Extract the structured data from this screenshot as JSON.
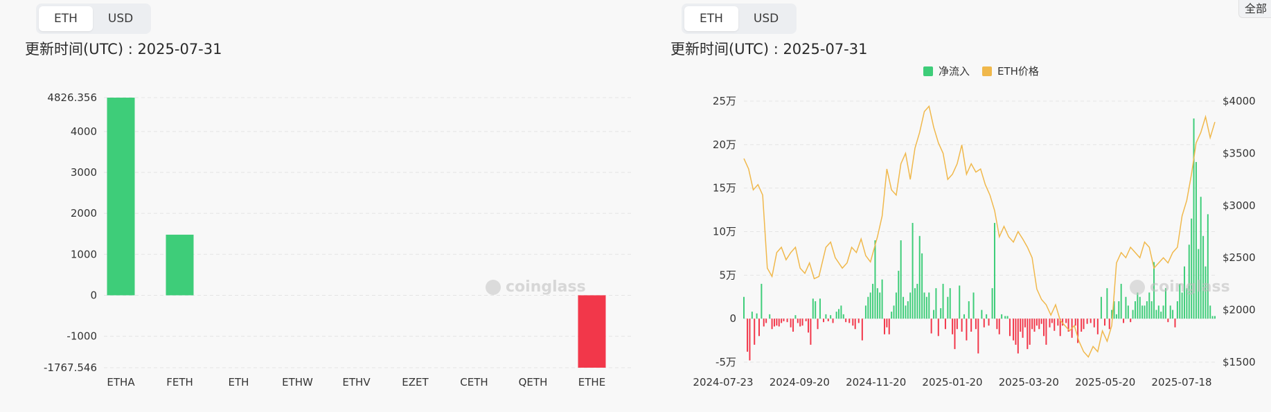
{
  "left_panel": {
    "toggle": [
      {
        "label": "ETH",
        "active": true
      },
      {
        "label": "USD",
        "active": false
      }
    ],
    "update_time": "更新时间(UTC) : 2025-07-31",
    "watermark": "coinglass"
  },
  "right_panel": {
    "toggle": [
      {
        "label": "ETH",
        "active": true
      },
      {
        "label": "USD",
        "active": false
      }
    ],
    "update_time": "更新时间(UTC) : 2025-07-31",
    "watermark": "coinglass",
    "corner_button": "全部"
  },
  "colors": {
    "positive": "#3ecd79",
    "negative": "#f2374a",
    "price": "#f0b84b",
    "grid": "#e4e4e4"
  },
  "chart_data": [
    {
      "type": "bar",
      "categories": [
        "ETHA",
        "FETH",
        "ETH",
        "ETHW",
        "ETHV",
        "EZET",
        "CETH",
        "QETH",
        "ETHE"
      ],
      "values": [
        4826.356,
        1480,
        0,
        0,
        0,
        0,
        0,
        0,
        -1767.546
      ],
      "y_ticks": [
        "4826.356",
        "4000",
        "3000",
        "2000",
        "1000",
        "0",
        "-1000",
        "-1767.546"
      ],
      "y_tick_values": [
        4826.356,
        4000,
        3000,
        2000,
        1000,
        0,
        -1000,
        -1767.546
      ],
      "ylim": [
        -1767.546,
        4826.356
      ],
      "grid": true
    },
    {
      "type": "bar+line",
      "legend": [
        "净流入",
        "ETH价格"
      ],
      "x_ticks": [
        "2024-07-23",
        "2024-09-20",
        "2024-11-20",
        "2025-01-20",
        "2025-03-20",
        "2025-05-20",
        "2025-07-18"
      ],
      "y_left_ticks": [
        "25万",
        "20万",
        "15万",
        "10万",
        "5万",
        "0",
        "-5万"
      ],
      "y_left_values": [
        250000,
        200000,
        150000,
        100000,
        50000,
        0,
        -50000
      ],
      "y_right_ticks": [
        "$4000",
        "$3500",
        "$3000",
        "$2500",
        "$2000",
        "$1500"
      ],
      "y_right_values": [
        4000,
        3500,
        3000,
        2500,
        2000,
        1500
      ],
      "ylim_left": [
        -50000,
        250000
      ],
      "ylim_right": [
        1500,
        4000
      ],
      "grid": true,
      "price_points": [
        [
          0,
          3450
        ],
        [
          4,
          3350
        ],
        [
          8,
          3150
        ],
        [
          12,
          3200
        ],
        [
          16,
          3100
        ],
        [
          20,
          2400
        ],
        [
          24,
          2320
        ],
        [
          28,
          2550
        ],
        [
          32,
          2600
        ],
        [
          36,
          2480
        ],
        [
          40,
          2550
        ],
        [
          44,
          2600
        ],
        [
          48,
          2400
        ],
        [
          52,
          2350
        ],
        [
          56,
          2450
        ],
        [
          60,
          2300
        ],
        [
          64,
          2320
        ],
        [
          70,
          2600
        ],
        [
          74,
          2650
        ],
        [
          78,
          2500
        ],
        [
          84,
          2400
        ],
        [
          88,
          2450
        ],
        [
          92,
          2600
        ],
        [
          96,
          2550
        ],
        [
          100,
          2680
        ],
        [
          104,
          2520
        ],
        [
          108,
          2460
        ],
        [
          114,
          2700
        ],
        [
          118,
          2900
        ],
        [
          122,
          3350
        ],
        [
          126,
          3150
        ],
        [
          130,
          3100
        ],
        [
          134,
          3400
        ],
        [
          138,
          3500
        ],
        [
          142,
          3250
        ],
        [
          146,
          3550
        ],
        [
          150,
          3700
        ],
        [
          154,
          3900
        ],
        [
          158,
          3950
        ],
        [
          162,
          3750
        ],
        [
          166,
          3600
        ],
        [
          170,
          3500
        ],
        [
          174,
          3250
        ],
        [
          178,
          3300
        ],
        [
          182,
          3400
        ],
        [
          186,
          3580
        ],
        [
          190,
          3300
        ],
        [
          194,
          3400
        ],
        [
          198,
          3320
        ],
        [
          202,
          3350
        ],
        [
          206,
          3200
        ],
        [
          210,
          3100
        ],
        [
          214,
          2950
        ],
        [
          218,
          2700
        ],
        [
          222,
          2800
        ],
        [
          226,
          2700
        ],
        [
          230,
          2650
        ],
        [
          234,
          2750
        ],
        [
          238,
          2680
        ],
        [
          242,
          2600
        ],
        [
          246,
          2500
        ],
        [
          250,
          2200
        ],
        [
          254,
          2100
        ],
        [
          258,
          2050
        ],
        [
          262,
          1950
        ],
        [
          266,
          2050
        ],
        [
          270,
          1900
        ],
        [
          274,
          1850
        ],
        [
          278,
          1800
        ],
        [
          282,
          1850
        ],
        [
          286,
          1700
        ],
        [
          290,
          1600
        ],
        [
          294,
          1550
        ],
        [
          298,
          1650
        ],
        [
          302,
          1600
        ],
        [
          306,
          1800
        ],
        [
          310,
          1700
        ],
        [
          314,
          1850
        ],
        [
          318,
          2450
        ],
        [
          322,
          2550
        ],
        [
          326,
          2500
        ],
        [
          330,
          2600
        ],
        [
          334,
          2550
        ],
        [
          338,
          2500
        ],
        [
          342,
          2650
        ],
        [
          346,
          2600
        ],
        [
          350,
          2400
        ],
        [
          354,
          2450
        ],
        [
          358,
          2500
        ],
        [
          362,
          2450
        ],
        [
          366,
          2550
        ],
        [
          370,
          2600
        ],
        [
          374,
          2900
        ],
        [
          378,
          3050
        ],
        [
          382,
          3300
        ],
        [
          386,
          3600
        ],
        [
          390,
          3700
        ],
        [
          394,
          3850
        ],
        [
          398,
          3650
        ],
        [
          402,
          3800
        ]
      ],
      "flow_bars": [
        [
          0,
          25000
        ],
        [
          3,
          -38000
        ],
        [
          5,
          -48000
        ],
        [
          7,
          8000
        ],
        [
          9,
          -30000
        ],
        [
          11,
          6000
        ],
        [
          13,
          -20000
        ],
        [
          15,
          40000
        ],
        [
          17,
          -9000
        ],
        [
          19,
          -5000
        ],
        [
          22,
          5000
        ],
        [
          24,
          -12000
        ],
        [
          26,
          -9000
        ],
        [
          28,
          -8000
        ],
        [
          30,
          -9000
        ],
        [
          32,
          -5000
        ],
        [
          34,
          -3000
        ],
        [
          37,
          -4000
        ],
        [
          40,
          -10000
        ],
        [
          42,
          -15000
        ],
        [
          44,
          4000
        ],
        [
          46,
          -5000
        ],
        [
          48,
          -9000
        ],
        [
          50,
          -8000
        ],
        [
          53,
          -3000
        ],
        [
          55,
          -16000
        ],
        [
          57,
          -30000
        ],
        [
          59,
          23000
        ],
        [
          61,
          20000
        ],
        [
          63,
          -12000
        ],
        [
          65,
          23000
        ],
        [
          68,
          -4000
        ],
        [
          70,
          5000
        ],
        [
          72,
          -3000
        ],
        [
          74,
          4000
        ],
        [
          76,
          -5000
        ],
        [
          79,
          8000
        ],
        [
          81,
          11000
        ],
        [
          83,
          15000
        ],
        [
          85,
          5000
        ],
        [
          87,
          -4000
        ],
        [
          90,
          -5000
        ],
        [
          93,
          -8000
        ],
        [
          95,
          -12000
        ],
        [
          98,
          -5000
        ],
        [
          101,
          -25000
        ],
        [
          104,
          15000
        ],
        [
          106,
          25000
        ],
        [
          108,
          30000
        ],
        [
          110,
          40000
        ],
        [
          112,
          90000
        ],
        [
          114,
          35000
        ],
        [
          116,
          30000
        ],
        [
          118,
          45000
        ],
        [
          120,
          -18000
        ],
        [
          122,
          -10000
        ],
        [
          124,
          -18000
        ],
        [
          126,
          8000
        ],
        [
          128,
          15000
        ],
        [
          130,
          30000
        ],
        [
          132,
          55000
        ],
        [
          134,
          90000
        ],
        [
          136,
          25000
        ],
        [
          138,
          15000
        ],
        [
          140,
          20000
        ],
        [
          142,
          30000
        ],
        [
          144,
          110000
        ],
        [
          146,
          35000
        ],
        [
          148,
          40000
        ],
        [
          150,
          95000
        ],
        [
          152,
          75000
        ],
        [
          154,
          30000
        ],
        [
          156,
          25000
        ],
        [
          158,
          30000
        ],
        [
          160,
          -17000
        ],
        [
          162,
          10000
        ],
        [
          164,
          35000
        ],
        [
          166,
          -20000
        ],
        [
          168,
          12000
        ],
        [
          170,
          40000
        ],
        [
          172,
          -12000
        ],
        [
          174,
          25000
        ],
        [
          176,
          35000
        ],
        [
          178,
          -18000
        ],
        [
          180,
          -35000
        ],
        [
          182,
          -12000
        ],
        [
          184,
          38000
        ],
        [
          186,
          -15000
        ],
        [
          188,
          5000
        ],
        [
          190,
          -25000
        ],
        [
          192,
          20000
        ],
        [
          194,
          -15000
        ],
        [
          196,
          30000
        ],
        [
          198,
          -12000
        ],
        [
          200,
          -40000
        ],
        [
          203,
          10000
        ],
        [
          205,
          -10000
        ],
        [
          207,
          5000
        ],
        [
          209,
          -8000
        ],
        [
          212,
          35000
        ],
        [
          214,
          110000
        ],
        [
          216,
          -12000
        ],
        [
          218,
          -18000
        ],
        [
          220,
          5000
        ],
        [
          223,
          3000
        ],
        [
          225,
          3000
        ],
        [
          227,
          -20000
        ],
        [
          230,
          -25000
        ],
        [
          232,
          -30000
        ],
        [
          234,
          -40000
        ],
        [
          236,
          -15000
        ],
        [
          238,
          -22000
        ],
        [
          240,
          -10000
        ],
        [
          242,
          -35000
        ],
        [
          244,
          -30000
        ],
        [
          246,
          -12000
        ],
        [
          248,
          -15000
        ],
        [
          250,
          -8000
        ],
        [
          252,
          -12000
        ],
        [
          254,
          -6000
        ],
        [
          256,
          -20000
        ],
        [
          258,
          -30000
        ],
        [
          261,
          -10000
        ],
        [
          263,
          -5000
        ],
        [
          265,
          -14000
        ],
        [
          268,
          -8000
        ],
        [
          270,
          -20000
        ],
        [
          272,
          -8000
        ],
        [
          275,
          -5000
        ],
        [
          277,
          -15000
        ],
        [
          280,
          -22000
        ],
        [
          283,
          -8000
        ],
        [
          285,
          -28000
        ],
        [
          288,
          -15000
        ],
        [
          290,
          -12000
        ],
        [
          293,
          -6000
        ],
        [
          296,
          -5000
        ],
        [
          299,
          -10000
        ],
        [
          302,
          -18000
        ],
        [
          305,
          25000
        ],
        [
          308,
          -8000
        ],
        [
          310,
          35000
        ],
        [
          312,
          -12000
        ],
        [
          314,
          10000
        ],
        [
          316,
          20000
        ],
        [
          318,
          5000
        ],
        [
          320,
          20000
        ],
        [
          322,
          40000
        ],
        [
          324,
          -5000
        ],
        [
          326,
          25000
        ],
        [
          328,
          15000
        ],
        [
          330,
          -4000
        ],
        [
          332,
          10000
        ],
        [
          334,
          20000
        ],
        [
          336,
          30000
        ],
        [
          338,
          25000
        ],
        [
          340,
          15000
        ],
        [
          342,
          15000
        ],
        [
          344,
          20000
        ],
        [
          346,
          30000
        ],
        [
          348,
          20000
        ],
        [
          350,
          65000
        ],
        [
          352,
          10000
        ],
        [
          354,
          15000
        ],
        [
          356,
          8000
        ],
        [
          358,
          15000
        ],
        [
          360,
          35000
        ],
        [
          362,
          -4000
        ],
        [
          364,
          15000
        ],
        [
          366,
          10000
        ],
        [
          368,
          -10000
        ],
        [
          370,
          20000
        ],
        [
          372,
          40000
        ],
        [
          374,
          30000
        ],
        [
          376,
          60000
        ],
        [
          378,
          35000
        ],
        [
          380,
          85000
        ],
        [
          382,
          115000
        ],
        [
          384,
          230000
        ],
        [
          386,
          180000
        ],
        [
          388,
          80000
        ],
        [
          390,
          140000
        ],
        [
          392,
          95000
        ],
        [
          394,
          60000
        ],
        [
          396,
          120000
        ],
        [
          398,
          15000
        ],
        [
          400,
          3000
        ],
        [
          402,
          3000
        ]
      ],
      "x_max": 402
    }
  ]
}
